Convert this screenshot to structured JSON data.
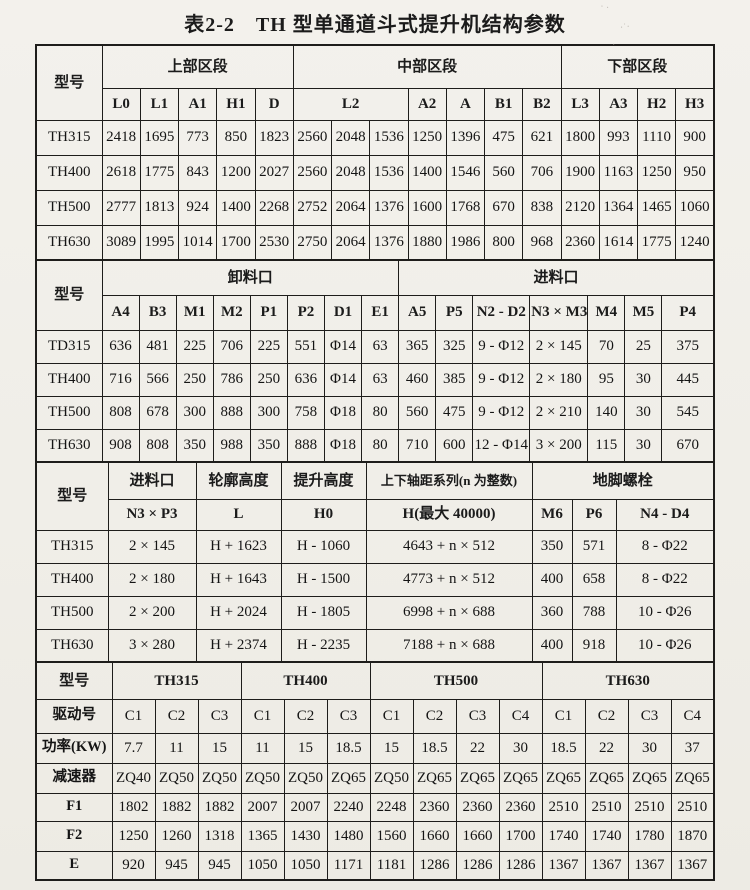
{
  "title": "表2-2　TH 型单通道斗式提升机结构参数",
  "colors": {
    "paper": "#f1efe9",
    "ink": "#1b1b1b"
  },
  "tables": [
    {
      "name": "upper-middle-lower-sections",
      "header": [
        [
          {
            "t": "型号",
            "rs": 2
          },
          {
            "t": "上部区段",
            "cs": 5
          },
          {
            "t": "中部区段",
            "cs": 7
          },
          {
            "t": "下部区段",
            "cs": 4
          }
        ],
        [
          {
            "t": "L0"
          },
          {
            "t": "L1"
          },
          {
            "t": "A1"
          },
          {
            "t": "H1"
          },
          {
            "t": "D"
          },
          {
            "t": "L2",
            "cs": 3
          },
          {
            "t": "A2"
          },
          {
            "t": "A"
          },
          {
            "t": "B1"
          },
          {
            "t": "B2"
          },
          {
            "t": "L3"
          },
          {
            "t": "A3"
          },
          {
            "t": "H2"
          },
          {
            "t": "H3"
          }
        ]
      ],
      "rows": [
        [
          "TH315",
          "2418",
          "1695",
          "773",
          "850",
          "1823",
          "2560",
          "2048",
          "1536",
          "1250",
          "1396",
          "475",
          "621",
          "1800",
          "993",
          "1110",
          "900"
        ],
        [
          "TH400",
          "2618",
          "1775",
          "843",
          "1200",
          "2027",
          "2560",
          "2048",
          "1536",
          "1400",
          "1546",
          "560",
          "706",
          "1900",
          "1163",
          "1250",
          "950"
        ],
        [
          "TH500",
          "2777",
          "1813",
          "924",
          "1400",
          "2268",
          "2752",
          "2064",
          "1376",
          "1600",
          "1768",
          "670",
          "838",
          "2120",
          "1364",
          "1465",
          "1060"
        ],
        [
          "TH630",
          "3089",
          "1995",
          "1014",
          "1700",
          "2530",
          "2750",
          "2064",
          "1376",
          "1880",
          "1986",
          "800",
          "968",
          "2360",
          "1614",
          "1775",
          "1240"
        ]
      ]
    },
    {
      "name": "discharge-feed-openings",
      "header": [
        [
          {
            "t": "型号",
            "rs": 2
          },
          {
            "t": "卸料口",
            "cs": 8
          },
          {
            "t": "进料口",
            "cs": 7
          }
        ],
        [
          {
            "t": "A4"
          },
          {
            "t": "B3"
          },
          {
            "t": "M1"
          },
          {
            "t": "M2"
          },
          {
            "t": "P1"
          },
          {
            "t": "P2"
          },
          {
            "t": "D1"
          },
          {
            "t": "E1"
          },
          {
            "t": "A5"
          },
          {
            "t": "P5"
          },
          {
            "t": "N2 - D2"
          },
          {
            "t": "N3 × M3"
          },
          {
            "t": "M4"
          },
          {
            "t": "M5"
          },
          {
            "t": "P4"
          }
        ]
      ],
      "rows": [
        [
          "TD315",
          "636",
          "481",
          "225",
          "706",
          "225",
          "551",
          "Φ14",
          "63",
          "365",
          "325",
          "9 - Φ12",
          "2 × 145",
          "70",
          "25",
          "375"
        ],
        [
          "TH400",
          "716",
          "566",
          "250",
          "786",
          "250",
          "636",
          "Φ14",
          "63",
          "460",
          "385",
          "9 - Φ12",
          "2 × 180",
          "95",
          "30",
          "445"
        ],
        [
          "TH500",
          "808",
          "678",
          "300",
          "888",
          "300",
          "758",
          "Φ18",
          "80",
          "560",
          "475",
          "9 - Φ12",
          "2 × 210",
          "140",
          "30",
          "545"
        ],
        [
          "TH630",
          "908",
          "808",
          "350",
          "988",
          "350",
          "888",
          "Φ18",
          "80",
          "710",
          "600",
          "12 - Φ14",
          "3 × 200",
          "115",
          "30",
          "670"
        ]
      ]
    },
    {
      "name": "heights-axle-series-anchor-bolts",
      "header": [
        [
          {
            "t": "型号",
            "rs": 2
          },
          {
            "t": "进料口"
          },
          {
            "t": "轮廓高度"
          },
          {
            "t": "提升高度"
          },
          {
            "t": "上下轴距系列(n 为整数)",
            "cls": "sm"
          },
          {
            "t": "地脚螺栓",
            "cs": 3
          }
        ],
        [
          {
            "t": "N3 × P3"
          },
          {
            "t": "L"
          },
          {
            "t": "H0"
          },
          {
            "t": "H(最大 40000)"
          },
          {
            "t": "M6"
          },
          {
            "t": "P6"
          },
          {
            "t": "N4 - D4"
          }
        ]
      ],
      "rows": [
        [
          "TH315",
          "2 × 145",
          "H + 1623",
          "H - 1060",
          "4643 + n × 512",
          "350",
          "571",
          "8 - Φ22"
        ],
        [
          "TH400",
          "2 × 180",
          "H + 1643",
          "H - 1500",
          "4773 + n × 512",
          "400",
          "658",
          "8 - Φ22"
        ],
        [
          "TH500",
          "2 × 200",
          "H + 2024",
          "H - 1805",
          "6998 + n × 688",
          "360",
          "788",
          "10 - Φ26"
        ],
        [
          "TH630",
          "3 × 280",
          "H + 2374",
          "H - 2235",
          "7188 + n × 688",
          "400",
          "918",
          "10 - Φ26"
        ]
      ]
    },
    {
      "name": "drive-power-reducer",
      "header": [
        [
          {
            "t": "型号"
          },
          {
            "t": "TH315",
            "cs": 3
          },
          {
            "t": "TH400",
            "cs": 3
          },
          {
            "t": "TH500",
            "cs": 4
          },
          {
            "t": "TH630",
            "cs": 4
          }
        ]
      ],
      "rows": [
        [
          "驱动号",
          "C1",
          "C2",
          "C3",
          "C1",
          "C2",
          "C3",
          "C1",
          "C2",
          "C3",
          "C4",
          "C1",
          "C2",
          "C3",
          "C4"
        ],
        [
          "功率(KW)",
          "7.7",
          "11",
          "15",
          "11",
          "15",
          "18.5",
          "15",
          "18.5",
          "22",
          "30",
          "18.5",
          "22",
          "30",
          "37"
        ],
        [
          "减速器",
          "ZQ40",
          "ZQ50",
          "ZQ50",
          "ZQ50",
          "ZQ50",
          "ZQ65",
          "ZQ50",
          "ZQ65",
          "ZQ65",
          "ZQ65",
          "ZQ65",
          "ZQ65",
          "ZQ65",
          "ZQ65"
        ],
        [
          "F1",
          "1802",
          "1882",
          "1882",
          "2007",
          "2007",
          "2240",
          "2248",
          "2360",
          "2360",
          "2360",
          "2510",
          "2510",
          "2510",
          "2510"
        ],
        [
          "F2",
          "1250",
          "1260",
          "1318",
          "1365",
          "1430",
          "1480",
          "1560",
          "1660",
          "1660",
          "1700",
          "1740",
          "1740",
          "1780",
          "1870"
        ],
        [
          "E",
          "920",
          "945",
          "945",
          "1050",
          "1050",
          "1171",
          "1181",
          "1286",
          "1286",
          "1286",
          "1367",
          "1367",
          "1367",
          "1367"
        ]
      ]
    }
  ]
}
